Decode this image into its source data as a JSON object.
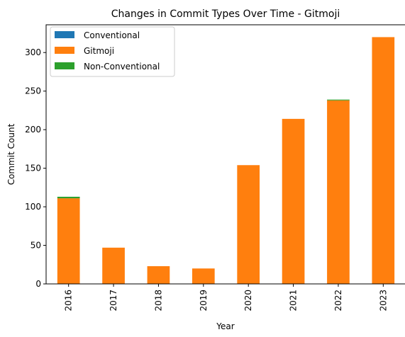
{
  "chart_data": {
    "type": "bar",
    "stacked": true,
    "title": "Changes in Commit Types Over Time - Gitmoji",
    "xlabel": "Year",
    "ylabel": "Commit Count",
    "categories": [
      "2016",
      "2017",
      "2018",
      "2019",
      "2020",
      "2021",
      "2022",
      "2023"
    ],
    "series": [
      {
        "name": "Conventional",
        "color": "#1f77b4",
        "values": [
          0,
          0,
          0,
          0,
          0,
          0,
          0,
          0
        ]
      },
      {
        "name": "Gitmoji",
        "color": "#ff7f0e",
        "values": [
          111,
          47,
          23,
          20,
          154,
          214,
          238,
          320
        ]
      },
      {
        "name": "Non-Conventional",
        "color": "#2ca02c",
        "values": [
          2,
          0,
          0,
          0,
          0,
          0,
          1,
          0
        ]
      }
    ],
    "ylim": [
      0,
      336
    ],
    "yticks": [
      0,
      50,
      100,
      150,
      200,
      250,
      300
    ],
    "legend_position": "top-left",
    "grid": false
  }
}
